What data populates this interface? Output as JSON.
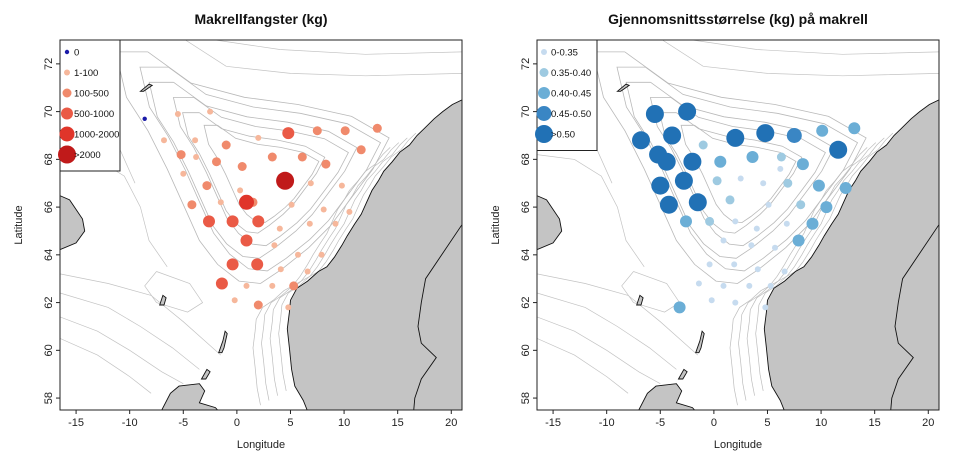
{
  "chart_data": [
    {
      "type": "scatter",
      "title": "Makrellfangster (kg)",
      "xlabel": "Longitude",
      "ylabel": "Latitude",
      "xlim": [
        -16.5,
        21
      ],
      "ylim": [
        57.5,
        73
      ],
      "xticks": [
        "-15",
        "-10",
        "-5",
        "0",
        "5",
        "10",
        "15",
        "20"
      ],
      "yticks": [
        "58",
        "60",
        "62",
        "64",
        "66",
        "68",
        "70",
        "72"
      ],
      "legend_position": "top-left",
      "legend": [
        {
          "label": "0",
          "color": "#1a1aa8",
          "size_class": 0
        },
        {
          "label": "1-100",
          "color": "#f6b79b",
          "size_class": 1
        },
        {
          "label": "100-500",
          "color": "#f08a6c",
          "size_class": 2
        },
        {
          "label": "500-1000",
          "color": "#ea5a46",
          "size_class": 3
        },
        {
          "label": "1000-2000",
          "color": "#e0352a",
          "size_class": 4
        },
        {
          "label": ">2000",
          "color": "#c01a1a",
          "size_class": 5
        }
      ],
      "points": [
        {
          "lon": -8.6,
          "lat": 69.7,
          "cls": 0
        },
        {
          "lon": -5.5,
          "lat": 69.9,
          "cls": 1
        },
        {
          "lon": -2.5,
          "lat": 70.0,
          "cls": 1
        },
        {
          "lon": -6.8,
          "lat": 68.8,
          "cls": 1
        },
        {
          "lon": -3.9,
          "lat": 68.8,
          "cls": 1
        },
        {
          "lon": -1.0,
          "lat": 68.6,
          "cls": 2
        },
        {
          "lon": 2.0,
          "lat": 68.9,
          "cls": 1
        },
        {
          "lon": 4.8,
          "lat": 69.1,
          "cls": 3
        },
        {
          "lon": 7.5,
          "lat": 69.2,
          "cls": 2
        },
        {
          "lon": 10.1,
          "lat": 69.2,
          "cls": 2
        },
        {
          "lon": 13.1,
          "lat": 69.3,
          "cls": 2
        },
        {
          "lon": -5.2,
          "lat": 68.2,
          "cls": 2
        },
        {
          "lon": -3.8,
          "lat": 68.1,
          "cls": 1
        },
        {
          "lon": -1.9,
          "lat": 67.9,
          "cls": 2
        },
        {
          "lon": 0.5,
          "lat": 67.7,
          "cls": 2
        },
        {
          "lon": 3.3,
          "lat": 68.1,
          "cls": 2
        },
        {
          "lon": 6.1,
          "lat": 68.1,
          "cls": 2
        },
        {
          "lon": 8.3,
          "lat": 67.8,
          "cls": 2
        },
        {
          "lon": 11.6,
          "lat": 68.4,
          "cls": 2
        },
        {
          "lon": -5.0,
          "lat": 67.4,
          "cls": 1
        },
        {
          "lon": -2.8,
          "lat": 66.9,
          "cls": 2
        },
        {
          "lon": 0.3,
          "lat": 66.7,
          "cls": 1
        },
        {
          "lon": 4.5,
          "lat": 67.1,
          "cls": 5
        },
        {
          "lon": 6.9,
          "lat": 67.0,
          "cls": 1
        },
        {
          "lon": 9.8,
          "lat": 66.9,
          "cls": 1
        },
        {
          "lon": -4.2,
          "lat": 66.1,
          "cls": 2
        },
        {
          "lon": -1.5,
          "lat": 66.2,
          "cls": 1
        },
        {
          "lon": 1.5,
          "lat": 66.2,
          "cls": 2
        },
        {
          "lon": 5.1,
          "lat": 66.1,
          "cls": 1
        },
        {
          "lon": 8.1,
          "lat": 65.9,
          "cls": 1
        },
        {
          "lon": 10.5,
          "lat": 65.8,
          "cls": 1
        },
        {
          "lon": -2.6,
          "lat": 65.4,
          "cls": 3
        },
        {
          "lon": -0.4,
          "lat": 65.4,
          "cls": 3
        },
        {
          "lon": 0.9,
          "lat": 66.2,
          "cls": 4
        },
        {
          "lon": 2.0,
          "lat": 65.4,
          "cls": 3
        },
        {
          "lon": 4.0,
          "lat": 65.1,
          "cls": 1
        },
        {
          "lon": 6.8,
          "lat": 65.3,
          "cls": 1
        },
        {
          "lon": 9.2,
          "lat": 65.3,
          "cls": 1
        },
        {
          "lon": 0.9,
          "lat": 64.6,
          "cls": 3
        },
        {
          "lon": 3.5,
          "lat": 64.4,
          "cls": 1
        },
        {
          "lon": 5.7,
          "lat": 64.0,
          "cls": 1
        },
        {
          "lon": 7.9,
          "lat": 64.0,
          "cls": 1
        },
        {
          "lon": -0.4,
          "lat": 63.6,
          "cls": 3
        },
        {
          "lon": 1.9,
          "lat": 63.6,
          "cls": 3
        },
        {
          "lon": 4.1,
          "lat": 63.4,
          "cls": 1
        },
        {
          "lon": 6.6,
          "lat": 63.3,
          "cls": 1
        },
        {
          "lon": -1.4,
          "lat": 62.8,
          "cls": 3
        },
        {
          "lon": 0.9,
          "lat": 62.7,
          "cls": 1
        },
        {
          "lon": 3.3,
          "lat": 62.7,
          "cls": 1
        },
        {
          "lon": 5.3,
          "lat": 62.7,
          "cls": 2
        },
        {
          "lon": -0.2,
          "lat": 62.1,
          "cls": 1
        },
        {
          "lon": 2.0,
          "lat": 61.9,
          "cls": 2
        },
        {
          "lon": 4.8,
          "lat": 61.8,
          "cls": 1
        }
      ]
    },
    {
      "type": "scatter",
      "title": "Gjennomsnittsstørrelse (kg) på makrell",
      "xlabel": "Longitude",
      "ylabel": "Latitude",
      "xlim": [
        -16.5,
        21
      ],
      "ylim": [
        57.5,
        73
      ],
      "xticks": [
        "-15",
        "-10",
        "-5",
        "0",
        "5",
        "10",
        "15",
        "20"
      ],
      "yticks": [
        "58",
        "60",
        "62",
        "64",
        "66",
        "68",
        "70",
        "72"
      ],
      "legend_position": "top-left",
      "legend": [
        {
          "label": "0-0.35",
          "color": "#c6dbef",
          "size_class": 1
        },
        {
          "label": "0.35-0.40",
          "color": "#9ecae1",
          "size_class": 2
        },
        {
          "label": "0.40-0.45",
          "color": "#6baed6",
          "size_class": 3
        },
        {
          "label": "0.45-0.50",
          "color": "#3a86c4",
          "size_class": 4
        },
        {
          "label": ">0.50",
          "color": "#2171b5",
          "size_class": 5
        }
      ],
      "points": [
        {
          "lon": -5.5,
          "lat": 69.9,
          "cls": 5
        },
        {
          "lon": -2.5,
          "lat": 70.0,
          "cls": 5
        },
        {
          "lon": -6.8,
          "lat": 68.8,
          "cls": 5
        },
        {
          "lon": -3.9,
          "lat": 69.0,
          "cls": 5
        },
        {
          "lon": -1.0,
          "lat": 68.6,
          "cls": 2
        },
        {
          "lon": 2.0,
          "lat": 68.9,
          "cls": 5
        },
        {
          "lon": 4.8,
          "lat": 69.1,
          "cls": 5
        },
        {
          "lon": 7.5,
          "lat": 69.0,
          "cls": 4
        },
        {
          "lon": 10.1,
          "lat": 69.2,
          "cls": 3
        },
        {
          "lon": 13.1,
          "lat": 69.3,
          "cls": 3
        },
        {
          "lon": -5.2,
          "lat": 68.2,
          "cls": 5
        },
        {
          "lon": -4.4,
          "lat": 67.9,
          "cls": 5
        },
        {
          "lon": -2.0,
          "lat": 67.9,
          "cls": 5
        },
        {
          "lon": 0.6,
          "lat": 67.9,
          "cls": 3
        },
        {
          "lon": 3.6,
          "lat": 68.1,
          "cls": 3
        },
        {
          "lon": 6.3,
          "lat": 68.1,
          "cls": 2
        },
        {
          "lon": 8.3,
          "lat": 67.8,
          "cls": 3
        },
        {
          "lon": 11.6,
          "lat": 68.4,
          "cls": 5
        },
        {
          "lon": 6.2,
          "lat": 67.6,
          "cls": 1
        },
        {
          "lon": -2.8,
          "lat": 67.1,
          "cls": 5
        },
        {
          "lon": 0.3,
          "lat": 67.1,
          "cls": 2
        },
        {
          "lon": 2.5,
          "lat": 67.2,
          "cls": 1
        },
        {
          "lon": 4.6,
          "lat": 67.0,
          "cls": 1
        },
        {
          "lon": 6.9,
          "lat": 67.0,
          "cls": 2
        },
        {
          "lon": 9.8,
          "lat": 66.9,
          "cls": 3
        },
        {
          "lon": 12.3,
          "lat": 66.8,
          "cls": 3
        },
        {
          "lon": -5.0,
          "lat": 66.9,
          "cls": 5
        },
        {
          "lon": -4.2,
          "lat": 66.1,
          "cls": 5
        },
        {
          "lon": -1.5,
          "lat": 66.2,
          "cls": 5
        },
        {
          "lon": 1.5,
          "lat": 66.3,
          "cls": 2
        },
        {
          "lon": 5.1,
          "lat": 66.1,
          "cls": 1
        },
        {
          "lon": 8.1,
          "lat": 66.1,
          "cls": 2
        },
        {
          "lon": 10.5,
          "lat": 66.0,
          "cls": 3
        },
        {
          "lon": -2.6,
          "lat": 65.4,
          "cls": 3
        },
        {
          "lon": -0.4,
          "lat": 65.4,
          "cls": 2
        },
        {
          "lon": 2.0,
          "lat": 65.4,
          "cls": 1
        },
        {
          "lon": 4.0,
          "lat": 65.1,
          "cls": 1
        },
        {
          "lon": 6.8,
          "lat": 65.3,
          "cls": 1
        },
        {
          "lon": 9.2,
          "lat": 65.3,
          "cls": 3
        },
        {
          "lon": 0.9,
          "lat": 64.6,
          "cls": 1
        },
        {
          "lon": 3.5,
          "lat": 64.4,
          "cls": 1
        },
        {
          "lon": 5.7,
          "lat": 64.3,
          "cls": 1
        },
        {
          "lon": 7.9,
          "lat": 64.6,
          "cls": 3
        },
        {
          "lon": -0.4,
          "lat": 63.6,
          "cls": 1
        },
        {
          "lon": 1.9,
          "lat": 63.6,
          "cls": 1
        },
        {
          "lon": 4.1,
          "lat": 63.4,
          "cls": 1
        },
        {
          "lon": 6.6,
          "lat": 63.3,
          "cls": 1
        },
        {
          "lon": -1.4,
          "lat": 62.8,
          "cls": 1
        },
        {
          "lon": 0.9,
          "lat": 62.7,
          "cls": 1
        },
        {
          "lon": 3.3,
          "lat": 62.7,
          "cls": 1
        },
        {
          "lon": 5.3,
          "lat": 62.7,
          "cls": 1
        },
        {
          "lon": -0.2,
          "lat": 62.1,
          "cls": 1
        },
        {
          "lon": 2.0,
          "lat": 62.0,
          "cls": 1
        },
        {
          "lon": 4.8,
          "lat": 61.8,
          "cls": 1
        },
        {
          "lon": -3.2,
          "lat": 61.8,
          "cls": 3
        }
      ]
    }
  ]
}
